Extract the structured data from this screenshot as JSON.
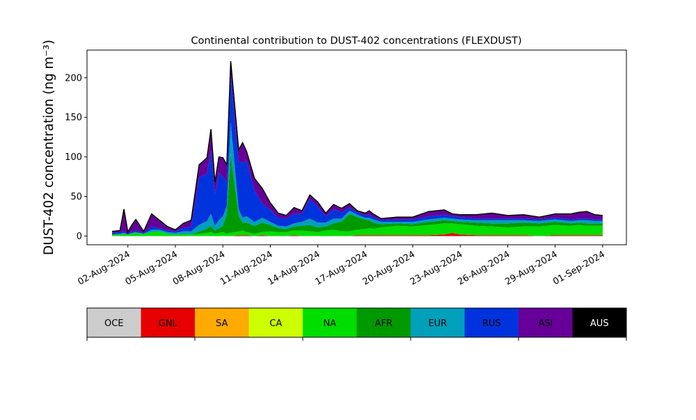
{
  "chart_data": {
    "type": "area",
    "stacked": true,
    "title": "Continental contribution to DUST-402 concentrations (FLEXDUST)",
    "ylabel": "DUST-402 concentration (ng m⁻³)",
    "xlabel": "",
    "xlim": [
      "2024-07-30T10:00",
      "2024-09-02T12:00"
    ],
    "ylim": [
      -11,
      235
    ],
    "yticks": [
      0,
      50,
      100,
      150,
      200
    ],
    "xticks": [
      "02-Aug-2024",
      "05-Aug-2024",
      "08-Aug-2024",
      "11-Aug-2024",
      "14-Aug-2024",
      "17-Aug-2024",
      "20-Aug-2024",
      "23-Aug-2024",
      "26-Aug-2024",
      "29-Aug-2024",
      "01-Sep-2024"
    ],
    "xtick_dates": [
      "2024-08-02",
      "2024-08-05",
      "2024-08-08",
      "2024-08-11",
      "2024-08-14",
      "2024-08-17",
      "2024-08-20",
      "2024-08-23",
      "2024-08-26",
      "2024-08-29",
      "2024-09-01"
    ],
    "grid": false,
    "legend": {
      "placement": "colorbar-below",
      "entries": [
        "OCE",
        "GNL",
        "SA",
        "CA",
        "NA",
        "AFR",
        "EUR",
        "RUS",
        "ASI",
        "AUS"
      ],
      "colors": [
        "#cccccc",
        "#e60000",
        "#ffaa00",
        "#ccff00",
        "#00dd00",
        "#009900",
        "#00a0bb",
        "#0033dd",
        "#660099",
        "#000000"
      ]
    },
    "series_order_bottom_to_top": [
      "GNL",
      "NA",
      "AFR",
      "EUR",
      "RUS",
      "ASI"
    ],
    "x": [
      "2024-08-01T00:00",
      "2024-08-01T12:00",
      "2024-08-01T18:00",
      "2024-08-02T00:00",
      "2024-08-02T06:00",
      "2024-08-02T12:00",
      "2024-08-03T00:00",
      "2024-08-03T12:00",
      "2024-08-04T00:00",
      "2024-08-04T12:00",
      "2024-08-05T00:00",
      "2024-08-05T12:00",
      "2024-08-06T00:00",
      "2024-08-06T12:00",
      "2024-08-07T00:00",
      "2024-08-07T06:00",
      "2024-08-07T12:00",
      "2024-08-07T18:00",
      "2024-08-08T00:00",
      "2024-08-08T06:00",
      "2024-08-08T12:00",
      "2024-08-09T00:00",
      "2024-08-09T06:00",
      "2024-08-09T12:00",
      "2024-08-10T00:00",
      "2024-08-10T12:00",
      "2024-08-11T00:00",
      "2024-08-11T12:00",
      "2024-08-12T00:00",
      "2024-08-12T12:00",
      "2024-08-13T00:00",
      "2024-08-13T12:00",
      "2024-08-14T00:00",
      "2024-08-14T12:00",
      "2024-08-15T00:00",
      "2024-08-15T12:00",
      "2024-08-16T00:00",
      "2024-08-16T12:00",
      "2024-08-17T00:00",
      "2024-08-17T06:00",
      "2024-08-17T12:00",
      "2024-08-18T00:00",
      "2024-08-19T00:00",
      "2024-08-20T00:00",
      "2024-08-21T00:00",
      "2024-08-22T00:00",
      "2024-08-22T12:00",
      "2024-08-23T00:00",
      "2024-08-24T00:00",
      "2024-08-25T00:00",
      "2024-08-26T00:00",
      "2024-08-27T00:00",
      "2024-08-28T00:00",
      "2024-08-29T00:00",
      "2024-08-30T00:00",
      "2024-08-30T12:00",
      "2024-08-31T00:00",
      "2024-08-31T12:00",
      "2024-09-01T00:00"
    ],
    "series": [
      {
        "name": "GNL",
        "values": [
          0,
          0,
          0,
          0,
          0,
          0,
          0,
          0,
          0,
          0,
          0,
          0,
          0,
          0,
          0,
          0,
          0,
          0,
          0,
          0,
          0,
          1,
          1,
          1,
          0,
          1,
          0,
          0,
          0,
          1,
          0,
          0,
          0,
          0,
          0,
          0,
          0,
          1,
          1,
          1,
          1,
          1,
          1,
          1,
          1,
          2,
          4,
          2,
          1,
          1,
          1,
          1,
          0,
          1,
          1,
          1,
          1,
          1,
          1
        ]
      },
      {
        "name": "NA",
        "values": [
          2,
          2,
          3,
          2,
          3,
          4,
          3,
          5,
          6,
          3,
          2,
          2,
          2,
          3,
          4,
          5,
          3,
          4,
          5,
          3,
          4,
          5,
          6,
          4,
          3,
          4,
          6,
          5,
          5,
          6,
          7,
          6,
          5,
          7,
          8,
          6,
          6,
          7,
          8,
          9,
          8,
          10,
          12,
          11,
          13,
          14,
          12,
          13,
          12,
          11,
          10,
          11,
          12,
          13,
          12,
          13,
          12,
          12,
          12
        ]
      },
      {
        "name": "AFR",
        "values": [
          0,
          0,
          0,
          0,
          0,
          0,
          0,
          0,
          0,
          0,
          0,
          1,
          0,
          3,
          5,
          8,
          4,
          6,
          8,
          25,
          100,
          20,
          10,
          12,
          10,
          12,
          8,
          5,
          4,
          5,
          6,
          8,
          6,
          5,
          8,
          12,
          22,
          16,
          12,
          10,
          8,
          4,
          3,
          3,
          4,
          4,
          3,
          3,
          4,
          4,
          5,
          5,
          4,
          4,
          3,
          3,
          3,
          3,
          3
        ]
      },
      {
        "name": "EUR",
        "values": [
          0,
          1,
          1,
          0,
          1,
          1,
          0,
          3,
          2,
          2,
          2,
          3,
          4,
          8,
          10,
          15,
          6,
          10,
          12,
          10,
          40,
          8,
          6,
          8,
          5,
          6,
          4,
          3,
          3,
          4,
          5,
          8,
          6,
          5,
          6,
          4,
          4,
          3,
          2,
          3,
          4,
          3,
          2,
          3,
          3,
          3,
          3,
          3,
          3,
          4,
          4,
          3,
          3,
          3,
          3,
          3,
          4,
          3,
          3
        ]
      },
      {
        "name": "RUS",
        "values": [
          2,
          2,
          2,
          1,
          2,
          2,
          1,
          4,
          2,
          2,
          2,
          4,
          6,
          60,
          60,
          80,
          40,
          60,
          50,
          30,
          60,
          60,
          70,
          70,
          40,
          18,
          15,
          10,
          10,
          12,
          10,
          25,
          20,
          8,
          12,
          8,
          4,
          3,
          3,
          4,
          3,
          2,
          3,
          3,
          4,
          4,
          3,
          3,
          2,
          2,
          2,
          2,
          2,
          2,
          2,
          2,
          2,
          2,
          2
        ]
      },
      {
        "name": "ASI",
        "values": [
          2,
          2,
          28,
          2,
          8,
          14,
          2,
          16,
          10,
          5,
          2,
          6,
          8,
          16,
          20,
          27,
          15,
          20,
          24,
          22,
          17,
          15,
          25,
          12,
          15,
          19,
          9,
          6,
          4,
          8,
          4,
          5,
          6,
          4,
          6,
          5,
          5,
          2,
          3,
          5,
          4,
          2,
          3,
          3,
          6,
          6,
          3,
          3,
          5,
          7,
          4,
          5,
          3,
          5,
          7,
          8,
          9,
          6,
          5
        ]
      }
    ]
  }
}
